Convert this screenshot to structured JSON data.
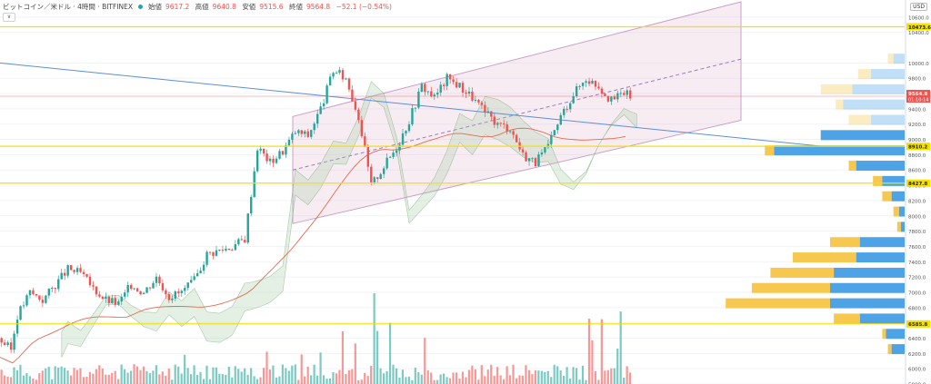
{
  "header": {
    "symbol": "ビットコイン／米ドル · 4時間 · BITFINEX",
    "open_label": "始値",
    "open": "9617.2",
    "high_label": "高値",
    "high": "9640.8",
    "low_label": "安値",
    "low": "9515.6",
    "close_label": "終値",
    "close": "9564.8",
    "change": "−52.1 (−0.54%)",
    "currency": "USD",
    "collapse": "∨"
  },
  "chart_data": {
    "type": "candlestick",
    "title": "",
    "ylim": [
      5800,
      10800
    ],
    "y_ticks": [
      "10600.0",
      "10400.0",
      "10000.0",
      "9800.0",
      "9600.0",
      "9400.0",
      "9200.0",
      "9000.0",
      "8800.0",
      "8600.0",
      "8400.0",
      "8200.0",
      "8000.0",
      "7800.0",
      "7600.0",
      "7400.0",
      "7200.0",
      "7000.0",
      "6800.0",
      "6600.0",
      "6400.0",
      "6200.0",
      "6000.0",
      "5800.0"
    ],
    "horizontal_levels": [
      {
        "label": "10473.6",
        "value": 10473.6
      },
      {
        "label": "8910.2",
        "value": 8910.2
      },
      {
        "label": "8427.8",
        "value": 8427.8
      },
      {
        "label": "6585.8",
        "value": 6585.8
      }
    ],
    "price_label": {
      "value": "9564.8",
      "countdown": "01:10:14"
    },
    "current_price": 9564.8,
    "channel": {
      "upper_start": 9300,
      "upper_end": 10800,
      "lower_start": 7900,
      "lower_end": 9250,
      "mid_start": 8600,
      "mid_end": 10050
    },
    "trendline": {
      "start": 10000,
      "end": 8800
    },
    "price_path": [
      [
        0,
        6400
      ],
      [
        4,
        6250
      ],
      [
        6,
        6700
      ],
      [
        10,
        7000
      ],
      [
        14,
        6900
      ],
      [
        18,
        7100
      ],
      [
        22,
        7300
      ],
      [
        26,
        7250
      ],
      [
        30,
        7050
      ],
      [
        34,
        6900
      ],
      [
        38,
        6850
      ],
      [
        42,
        7100
      ],
      [
        46,
        7000
      ],
      [
        50,
        7200
      ],
      [
        54,
        6950
      ],
      [
        58,
        7000
      ],
      [
        62,
        7150
      ],
      [
        66,
        7500
      ],
      [
        70,
        7550
      ],
      [
        74,
        7600
      ],
      [
        78,
        7700
      ],
      [
        82,
        8900
      ],
      [
        86,
        8700
      ],
      [
        90,
        8850
      ],
      [
        94,
        9100
      ],
      [
        98,
        9050
      ],
      [
        102,
        9400
      ],
      [
        106,
        9900
      ],
      [
        110,
        9800
      ],
      [
        114,
        9300
      ],
      [
        118,
        8400
      ],
      [
        122,
        8650
      ],
      [
        126,
        8900
      ],
      [
        130,
        9250
      ],
      [
        134,
        9700
      ],
      [
        138,
        9550
      ],
      [
        142,
        9800
      ],
      [
        146,
        9700
      ],
      [
        150,
        9550
      ],
      [
        154,
        9350
      ],
      [
        158,
        9200
      ],
      [
        162,
        9150
      ],
      [
        166,
        8800
      ],
      [
        170,
        8700
      ],
      [
        174,
        8900
      ],
      [
        178,
        9300
      ],
      [
        182,
        9600
      ],
      [
        186,
        9800
      ],
      [
        190,
        9700
      ],
      [
        194,
        9500
      ],
      [
        198,
        9620
      ],
      [
        200,
        9564
      ]
    ],
    "volume_profile": [
      {
        "price": 10050,
        "buy": 0.06,
        "sell": 0.09
      },
      {
        "price": 9850,
        "buy": 0.18,
        "sell": 0.25
      },
      {
        "price": 9650,
        "buy": 0.28,
        "sell": 0.45
      },
      {
        "price": 9450,
        "buy": 0.33,
        "sell": 0.37
      },
      {
        "price": 9250,
        "buy": 0.18,
        "sell": 0.3
      },
      {
        "price": 9050,
        "buy": 0.45,
        "sell": 0.42
      },
      {
        "price": 8850,
        "buy": 0.7,
        "sell": 0.75
      },
      {
        "price": 8650,
        "buy": 0.26,
        "sell": 0.3
      },
      {
        "price": 8450,
        "buy": 0.12,
        "sell": 0.17
      },
      {
        "price": 8250,
        "buy": 0.07,
        "sell": 0.12
      },
      {
        "price": 8050,
        "buy": 0.03,
        "sell": 0.06
      },
      {
        "price": 7850,
        "buy": 0.02,
        "sell": 0.04
      },
      {
        "price": 7650,
        "buy": 0.24,
        "sell": 0.4
      },
      {
        "price": 7450,
        "buy": 0.26,
        "sell": 0.6
      },
      {
        "price": 7250,
        "buy": 0.38,
        "sell": 0.72
      },
      {
        "price": 7050,
        "buy": 0.4,
        "sell": 0.82
      },
      {
        "price": 6850,
        "buy": 0.4,
        "sell": 0.96
      },
      {
        "price": 6650,
        "buy": 0.24,
        "sell": 0.38
      },
      {
        "price": 6450,
        "buy": 0.1,
        "sell": 0.12
      },
      {
        "price": 6250,
        "buy": 0.07,
        "sell": 0.09
      }
    ],
    "colors": {
      "up": "#26a69a",
      "down": "#ef5350",
      "level": "#f5e100",
      "channel": "#c9a0c9",
      "trend": "#5b8fd9",
      "vp_buy": "#f6c84f",
      "vp_sell": "#4da3e6",
      "ma": "#e36b4d"
    }
  }
}
